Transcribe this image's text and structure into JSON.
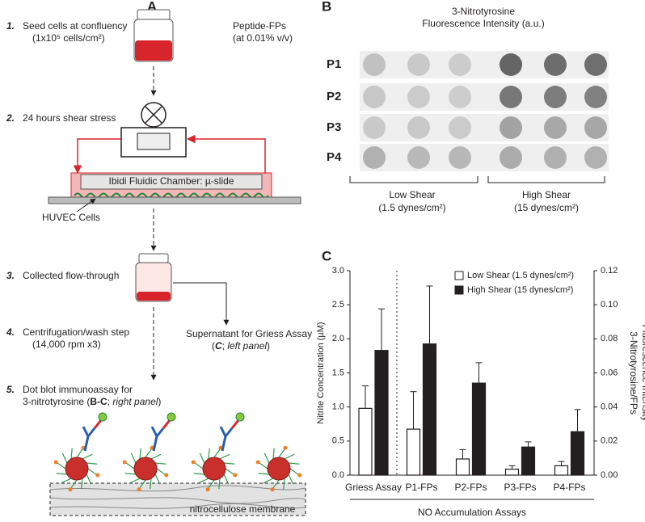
{
  "panel_labels": [
    "A",
    "B",
    "C"
  ],
  "protocol": {
    "steps": [
      {
        "number": "1.",
        "text": "Seed cells at confluency",
        "detail": "(1x10⁵ cells/cm²)"
      },
      {
        "number": "2.",
        "text": "24 hours shear stress"
      },
      {
        "number": "3.",
        "text": "Collected flow-through"
      },
      {
        "number": "4.",
        "text": "Centrifugation/wash step",
        "detail": "(14,000 rpm x3)"
      },
      {
        "number": "5.",
        "text": "Dot blot immunoassay for",
        "detail": [
          "3-nitrotyrosine (",
          "B-C",
          "; ",
          "right panel",
          ")"
        ]
      }
    ],
    "peptide": "Peptide-FPs",
    "peptide_detail": "(at 0.01% v/v)",
    "chamber": "Ibidi Fluidic Chamber: µ-slide",
    "cells": "HUVEC Cells",
    "supernatant": "Supernatant for Griess Assay",
    "supernatant_detail": [
      "(",
      "C",
      "; ",
      "left panel",
      ")"
    ],
    "membrane": "nitrocellulose membrane"
  },
  "dot_blot": {
    "title": [
      "3-Nitrotyrosine",
      "Fluorescence Intensity (a.u.)"
    ],
    "rows": [
      "P1",
      "P2",
      "P3",
      "P4"
    ],
    "low": [
      "Low Shear",
      "(1.5 dynes/cm²)"
    ],
    "high": [
      "High Shear",
      "(15 dynes/cm²)"
    ]
  },
  "chart_data": [
    {
      "type": "bar",
      "categories": [
        "Griess Assay"
      ],
      "ylabel": "Nitrite Concentration (µM)",
      "xlabel": "NO Accumulation Assays",
      "ylim": [
        0,
        3
      ],
      "yticks": [
        {
          "value": 0,
          "label": "0.0"
        },
        0.5,
        {
          "value": 1,
          "label": "1.0"
        },
        1.5,
        {
          "value": 2,
          "label": "2.0"
        },
        2.5,
        {
          "value": 3,
          "label": "3.0"
        }
      ],
      "legend": "top-right",
      "series": [
        {
          "name": "Low Shear (1.5 dynes/cm²)",
          "color": "#ffffff",
          "values": [
            0.98
          ],
          "errors": [
            0.33
          ]
        },
        {
          "name": "High Shear (15 dynes/cm²)",
          "color": "#231f20",
          "values": [
            1.83
          ],
          "errors": [
            0.61
          ]
        }
      ]
    },
    {
      "type": "bar",
      "categories": [
        "P1-FPs",
        "P2-FPs",
        "P3-FPs",
        "P4-FPs"
      ],
      "y2label": [
        "3-Nitrotyrosine/FPs",
        "Fluorescence Intensity"
      ],
      "y2lim": [
        0,
        0.12
      ],
      "y2ticks": [
        {
          "value": 0,
          "label": "0.00"
        },
        0.02,
        0.04,
        0.06,
        0.08,
        {
          "value": 0.1,
          "label": "0.10"
        },
        0.12
      ],
      "series": [
        {
          "color": "#ffffff",
          "axis": "y2",
          "values": [
            0.027,
            0.0095,
            0.0035,
            0.0055
          ],
          "errors": [
            0.022,
            0.0055,
            0.002,
            0.0025
          ]
        },
        {
          "color": "#231f20",
          "axis": "y2",
          "values": [
            0.077,
            0.054,
            0.0165,
            0.0255
          ],
          "errors": [
            0.034,
            0.012,
            0.003,
            0.013
          ]
        }
      ]
    }
  ]
}
